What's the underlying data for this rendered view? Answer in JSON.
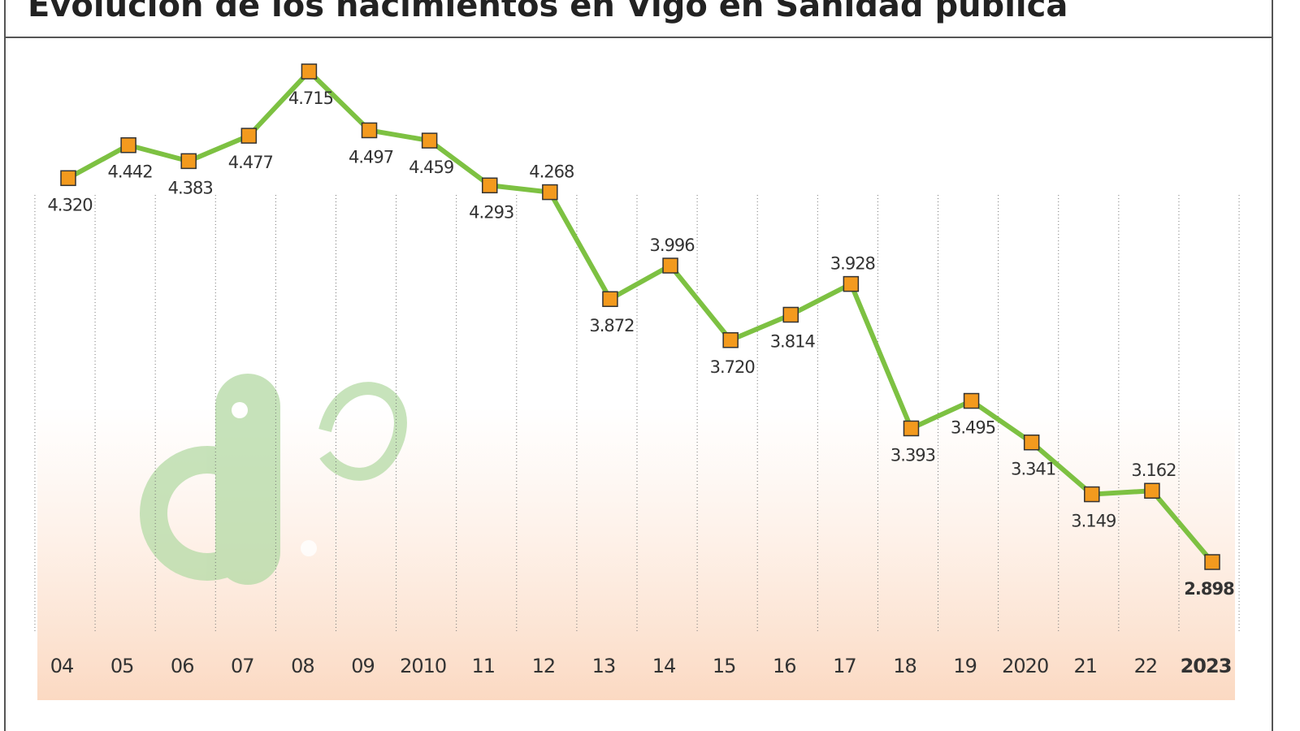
{
  "chart_data": {
    "type": "line",
    "title": "Evolución de los nacimientos en Vigo en Sanidad pública",
    "categories": [
      "04",
      "05",
      "06",
      "07",
      "08",
      "09",
      "2010",
      "11",
      "12",
      "13",
      "14",
      "15",
      "16",
      "17",
      "18",
      "19",
      "2020",
      "21",
      "22",
      "2023"
    ],
    "values": [
      4320,
      4442,
      4383,
      4477,
      4715,
      4497,
      4459,
      4293,
      4268,
      3872,
      3996,
      3720,
      3814,
      3928,
      3393,
      3495,
      3341,
      3149,
      3162,
      2898
    ],
    "value_labels": [
      "4.320",
      "4.442",
      "4.383",
      "4.477",
      "4.715",
      "4.497",
      "4.459",
      "4.293",
      "4.268",
      "3.872",
      "3.996",
      "3.720",
      "3.814",
      "3.928",
      "3.393",
      "3.495",
      "3.341",
      "3.149",
      "3.162",
      "2.898"
    ],
    "color": "#7dc142",
    "marker_color": "#f39a1e"
  }
}
